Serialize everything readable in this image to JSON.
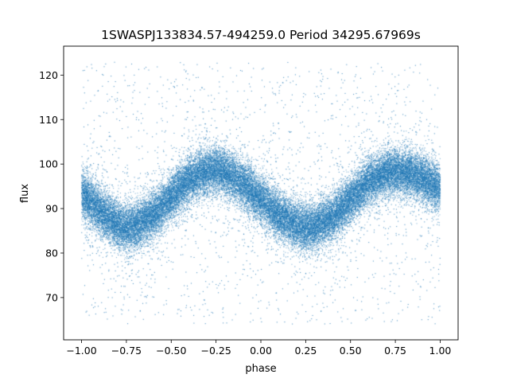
{
  "chart_data": {
    "type": "scatter",
    "title": "1SWASPJ133834.57-494259.0 Period 34295.67969s",
    "xlabel": "phase",
    "ylabel": "flux",
    "xlim": [
      -1.1,
      1.1
    ],
    "ylim": [
      60.5,
      126.5
    ],
    "xticks": [
      -1.0,
      -0.75,
      -0.5,
      -0.25,
      0.0,
      0.25,
      0.5,
      0.75,
      1.0
    ],
    "xtick_labels": [
      "−1.00",
      "−0.75",
      "−0.50",
      "−0.25",
      "0.00",
      "0.25",
      "0.50",
      "0.75",
      "1.00"
    ],
    "yticks": [
      70,
      80,
      90,
      100,
      110,
      120
    ],
    "ytick_labels": [
      "70",
      "80",
      "90",
      "100",
      "110",
      "120"
    ],
    "grid": false,
    "series": [
      {
        "color": "#1f77b4",
        "phase_range": [
          -1.0,
          1.0
        ],
        "light_curve_x": [
          -1.0,
          -0.9,
          -0.8,
          -0.75,
          -0.7,
          -0.6,
          -0.5,
          -0.4,
          -0.3,
          -0.25,
          -0.2,
          -0.1,
          0.0,
          0.1,
          0.2,
          0.25,
          0.3,
          0.4,
          0.5,
          0.6,
          0.7,
          0.75,
          0.8,
          0.9,
          1.0
        ],
        "light_curve_median_flux": [
          93.5,
          89.5,
          86.5,
          85.8,
          86.2,
          88.5,
          92.5,
          96.5,
          98.5,
          98.6,
          98.2,
          95.5,
          92.0,
          88.5,
          86.2,
          85.8,
          86.0,
          88.0,
          92.0,
          96.0,
          98.0,
          98.3,
          98.2,
          97.0,
          94.5
        ],
        "scatter_flux_range": [
          64,
          123
        ],
        "x": [
          -0.999,
          -0.748,
          -0.5,
          -0.249,
          0.001,
          0.251,
          0.5,
          0.752,
          0.999
        ],
        "y": [
          93.4,
          85.9,
          92.6,
          98.5,
          92.1,
          85.7,
          91.9,
          98.4,
          94.4
        ]
      }
    ]
  }
}
